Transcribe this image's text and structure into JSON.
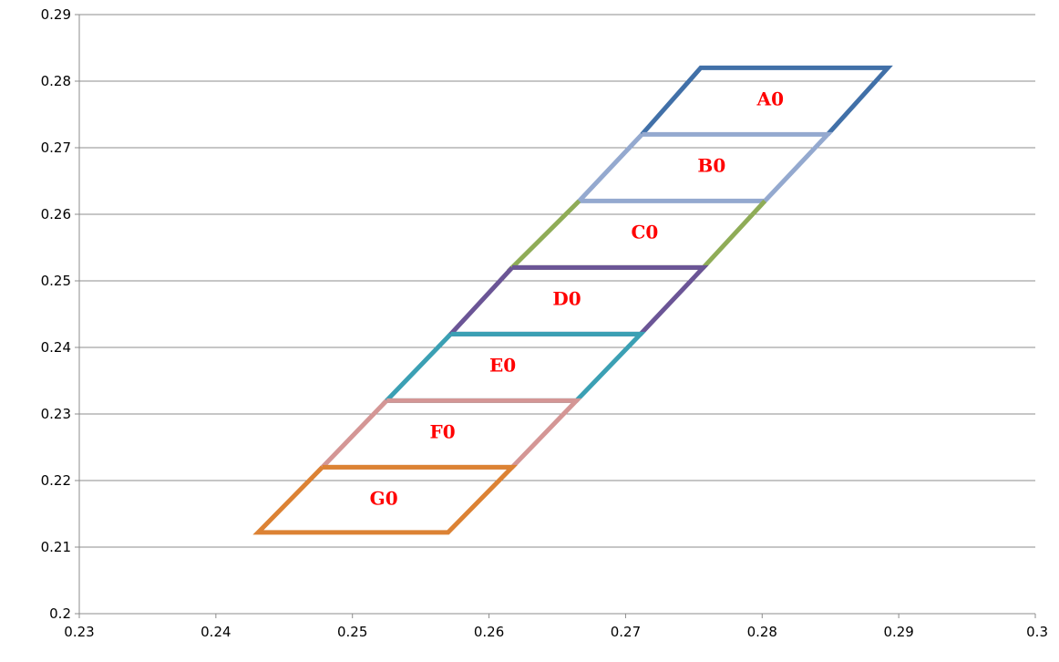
{
  "chart_data": {
    "type": "line",
    "title": "",
    "xlabel": "",
    "ylabel": "",
    "xlim": [
      0.23,
      0.3
    ],
    "ylim": [
      0.2,
      0.29
    ],
    "x_ticks": [
      "0.23",
      "0.24",
      "0.25",
      "0.26",
      "0.27",
      "0.28",
      "0.29",
      "0.3"
    ],
    "y_ticks": [
      "0.2",
      "0.21",
      "0.22",
      "0.23",
      "0.24",
      "0.25",
      "0.26",
      "0.27",
      "0.28",
      "0.29"
    ],
    "grid": "horizontal",
    "legend": "none",
    "series": [
      {
        "label": "A0",
        "color": "#4170a8",
        "label_at": [
          0.2806,
          0.2773
        ],
        "points": [
          [
            0.2712,
            0.272
          ],
          [
            0.2755,
            0.282
          ],
          [
            0.2892,
            0.282
          ],
          [
            0.2848,
            0.272
          ]
        ]
      },
      {
        "label": "B0",
        "color": "#94a9cf",
        "label_at": [
          0.2763,
          0.2673
        ],
        "points": [
          [
            0.2712,
            0.272
          ],
          [
            0.2666,
            0.262
          ],
          [
            0.2802,
            0.262
          ],
          [
            0.2848,
            0.272
          ],
          [
            0.2712,
            0.272
          ]
        ]
      },
      {
        "label": "C0",
        "color": "#8fac57",
        "label_at": [
          0.2714,
          0.2573
        ],
        "points": [
          [
            0.2666,
            0.262
          ],
          [
            0.2617,
            0.252
          ],
          [
            0.2757,
            0.252
          ],
          [
            0.2802,
            0.262
          ]
        ]
      },
      {
        "label": "D0",
        "color": "#6b5596",
        "label_at": [
          0.2657,
          0.2473
        ],
        "points": [
          [
            0.2617,
            0.252
          ],
          [
            0.2572,
            0.242
          ],
          [
            0.2711,
            0.242
          ],
          [
            0.2757,
            0.252
          ],
          [
            0.2617,
            0.252
          ]
        ]
      },
      {
        "label": "E0",
        "color": "#3ba0b4",
        "label_at": [
          0.261,
          0.2373
        ],
        "points": [
          [
            0.2572,
            0.242
          ],
          [
            0.2525,
            0.232
          ],
          [
            0.2664,
            0.232
          ],
          [
            0.2711,
            0.242
          ],
          [
            0.2572,
            0.242
          ]
        ]
      },
      {
        "label": "F0",
        "color": "#d49695",
        "label_at": [
          0.2566,
          0.2273
        ],
        "points": [
          [
            0.2525,
            0.232
          ],
          [
            0.2478,
            0.222
          ],
          [
            0.2617,
            0.222
          ],
          [
            0.2664,
            0.232
          ],
          [
            0.2525,
            0.232
          ]
        ]
      },
      {
        "label": "G0",
        "color": "#dc8234",
        "label_at": [
          0.2523,
          0.2173
        ],
        "points": [
          [
            0.2478,
            0.222
          ],
          [
            0.2431,
            0.2122
          ],
          [
            0.257,
            0.2122
          ],
          [
            0.2617,
            0.222
          ],
          [
            0.2478,
            0.222
          ]
        ]
      }
    ]
  }
}
